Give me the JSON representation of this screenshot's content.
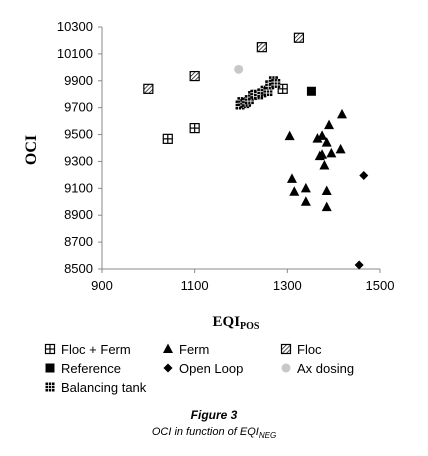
{
  "chart_data": {
    "type": "scatter",
    "title": "",
    "xlabel": "EQI",
    "xlabel_sub": "POS",
    "ylabel": "OCI",
    "xlim": [
      900,
      1500
    ],
    "ylim": [
      8500,
      10300
    ],
    "x_ticks": [
      "900",
      "1100",
      "1300",
      "1500"
    ],
    "y_ticks": [
      "8500",
      "8700",
      "8900",
      "9100",
      "9300",
      "9500",
      "9700",
      "9900",
      "10100",
      "10300"
    ],
    "grid": false,
    "legend_position": "bottom",
    "series": [
      {
        "name": "Floc + Ferm",
        "marker": "square-plus",
        "points": [
          [
            1042,
            9468
          ],
          [
            1100,
            9548
          ],
          [
            1290,
            9840
          ]
        ]
      },
      {
        "name": "Ferm",
        "marker": "triangle",
        "points": [
          [
            1305,
            9488
          ],
          [
            1310,
            9170
          ],
          [
            1315,
            9075
          ],
          [
            1340,
            9100
          ],
          [
            1340,
            9000
          ],
          [
            1365,
            9470
          ],
          [
            1370,
            9340
          ],
          [
            1375,
            9490
          ],
          [
            1375,
            9350
          ],
          [
            1380,
            9270
          ],
          [
            1385,
            9440
          ],
          [
            1385,
            9080
          ],
          [
            1385,
            8960
          ],
          [
            1390,
            9570
          ],
          [
            1395,
            9360
          ],
          [
            1415,
            9390
          ],
          [
            1418,
            9650
          ]
        ]
      },
      {
        "name": "Floc",
        "marker": "square-hatched",
        "points": [
          [
            1000,
            9840
          ],
          [
            1100,
            9935
          ],
          [
            1245,
            10150
          ],
          [
            1325,
            10220
          ]
        ]
      },
      {
        "name": "Reference",
        "marker": "square",
        "points": [
          [
            1352,
            9822
          ]
        ]
      },
      {
        "name": "Open Loop",
        "marker": "diamond",
        "points": [
          [
            1465,
            9195
          ],
          [
            1455,
            8530
          ]
        ]
      },
      {
        "name": "Ax dosing",
        "marker": "circle",
        "points": [
          [
            1195,
            9985
          ]
        ]
      },
      {
        "name": "Balancing tank",
        "marker": "square-grid",
        "points": [
          [
            1198,
            9720
          ],
          [
            1202,
            9745
          ],
          [
            1208,
            9730
          ],
          [
            1212,
            9740
          ],
          [
            1218,
            9760
          ],
          [
            1225,
            9790
          ],
          [
            1230,
            9800
          ],
          [
            1238,
            9795
          ],
          [
            1245,
            9810
          ],
          [
            1252,
            9830
          ],
          [
            1258,
            9820
          ],
          [
            1262,
            9870
          ],
          [
            1270,
            9900
          ],
          [
            1275,
            9880
          ]
        ]
      }
    ]
  },
  "figure": {
    "caption_title": "Figure 3",
    "caption_prefix": "OCI in function of EQI",
    "caption_sub": "NEG"
  }
}
